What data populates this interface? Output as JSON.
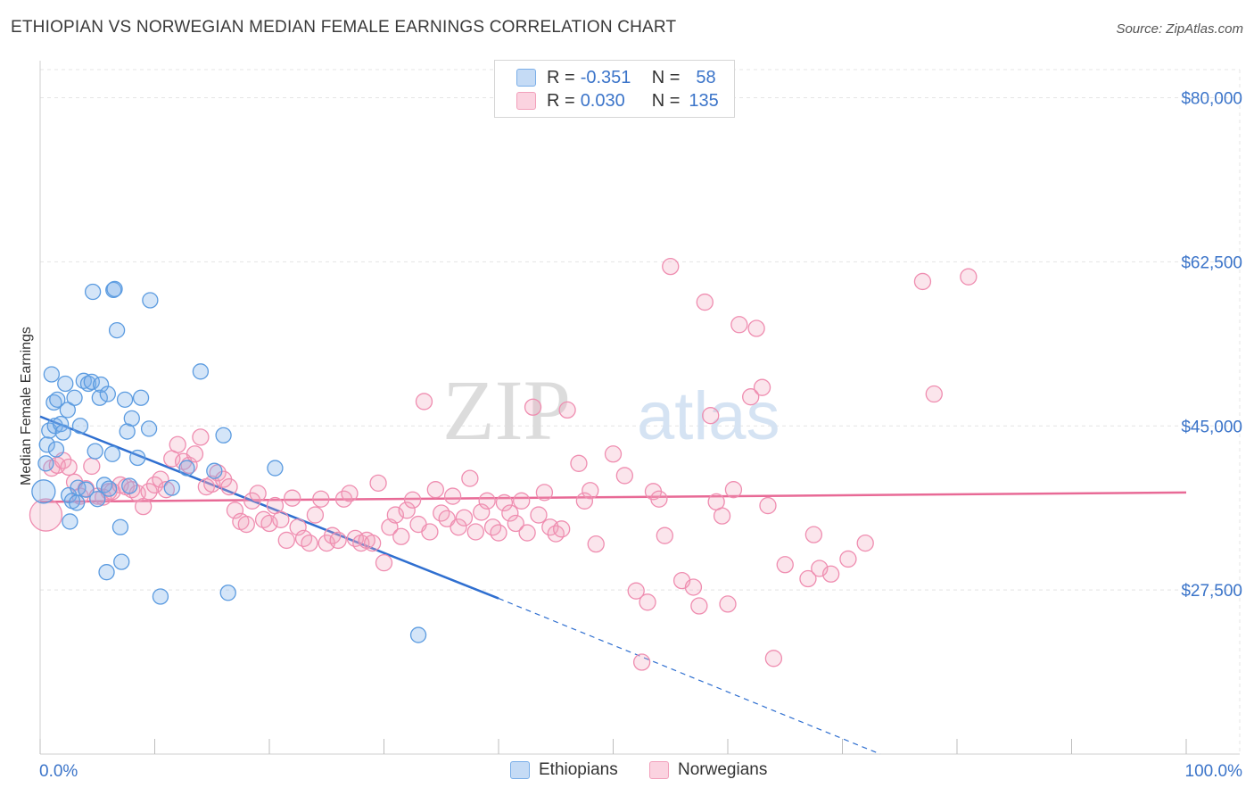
{
  "title": "ETHIOPIAN VS NORWEGIAN MEDIAN FEMALE EARNINGS CORRELATION CHART",
  "source": "Source: ZipAtlas.com",
  "watermark": {
    "zip": "ZIP",
    "atlas": "atlas"
  },
  "legend": {
    "r_label": "R =",
    "n_label": "N =",
    "rows": [
      {
        "r": "-0.351",
        "n": "58",
        "color": "#7aaee8"
      },
      {
        "r": "0.030",
        "n": "135",
        "color": "#f2a0bb"
      }
    ]
  },
  "bottom_legend": [
    {
      "label": "Ethiopians",
      "color": "#7aaee8"
    },
    {
      "label": "Norwegians",
      "color": "#f2a0bb"
    }
  ],
  "chart_data": {
    "type": "scatter",
    "title": "ETHIOPIAN VS NORWEGIAN MEDIAN FEMALE EARNINGS CORRELATION CHART",
    "xlabel": "",
    "ylabel": "Median Female Earnings",
    "xlim": [
      0,
      100
    ],
    "ylim": [
      10000,
      83000
    ],
    "x_tick_labels": [
      "0.0%",
      "100.0%"
    ],
    "y_ticks": [
      27500,
      45000,
      62500,
      80000
    ],
    "y_tick_labels": [
      "$27,500",
      "$45,000",
      "$62,500",
      "$80,000"
    ],
    "grid": true,
    "legend_position": "top-center",
    "colors": {
      "ethiopians": "#5b9be0",
      "norwegians": "#ef8db0",
      "eth_line": "#2f6fd0",
      "nor_line": "#e86a96",
      "axis_label": "#3b74c9"
    },
    "series": [
      {
        "name": "Ethiopians",
        "r": -0.351,
        "n": 58,
        "trend": {
          "x0": 0,
          "y0": 46000,
          "x1": 40,
          "y1": 26600,
          "x_end_dashed": 73.3,
          "y_end_dashed": 10000
        },
        "points": [
          [
            0.3,
            38000
          ],
          [
            0.5,
            41000
          ],
          [
            0.6,
            43000
          ],
          [
            0.8,
            44500
          ],
          [
            1,
            50500
          ],
          [
            1.2,
            47500
          ],
          [
            1.3,
            45000
          ],
          [
            1.4,
            42500
          ],
          [
            1.5,
            47800
          ],
          [
            1.8,
            45200
          ],
          [
            2,
            44300
          ],
          [
            2.2,
            49500
          ],
          [
            2.4,
            46700
          ],
          [
            2.5,
            37600
          ],
          [
            2.6,
            34800
          ],
          [
            2.8,
            37000
          ],
          [
            3,
            48000
          ],
          [
            3.2,
            36800
          ],
          [
            3.3,
            38400
          ],
          [
            3.5,
            45000
          ],
          [
            3.8,
            49800
          ],
          [
            4,
            38200
          ],
          [
            4.2,
            49500
          ],
          [
            4.5,
            49700
          ],
          [
            4.6,
            59300
          ],
          [
            4.8,
            42300
          ],
          [
            5,
            37200
          ],
          [
            5.2,
            48000
          ],
          [
            5.3,
            49400
          ],
          [
            5.6,
            38700
          ],
          [
            5.8,
            29400
          ],
          [
            5.9,
            48400
          ],
          [
            6,
            38300
          ],
          [
            6.3,
            42000
          ],
          [
            6.4,
            59500
          ],
          [
            6.5,
            59600
          ],
          [
            6.7,
            55200
          ],
          [
            7,
            34200
          ],
          [
            7.1,
            30500
          ],
          [
            7.4,
            47800
          ],
          [
            7.6,
            44400
          ],
          [
            7.8,
            38600
          ],
          [
            8,
            45800
          ],
          [
            8.5,
            41600
          ],
          [
            8.8,
            48000
          ],
          [
            9.5,
            44700
          ],
          [
            9.6,
            58400
          ],
          [
            10.5,
            26800
          ],
          [
            11.5,
            38400
          ],
          [
            12.8,
            40500
          ],
          [
            14,
            50800
          ],
          [
            15.2,
            40200
          ],
          [
            16,
            44000
          ],
          [
            16.4,
            27200
          ],
          [
            20.5,
            40500
          ],
          [
            33,
            22700
          ]
        ]
      },
      {
        "name": "Norwegians",
        "r": 0.03,
        "n": 135,
        "trend": {
          "x0": 0,
          "y0": 36900,
          "x1": 100,
          "y1": 37900
        },
        "points": [
          [
            0.5,
            35500
          ],
          [
            1,
            40500
          ],
          [
            1.5,
            40800
          ],
          [
            2,
            41300
          ],
          [
            2.5,
            40600
          ],
          [
            3,
            39000
          ],
          [
            3.5,
            37500
          ],
          [
            4,
            38300
          ],
          [
            4.5,
            40700
          ],
          [
            5,
            37500
          ],
          [
            5.5,
            37400
          ],
          [
            6,
            38000
          ],
          [
            6.3,
            38000
          ],
          [
            7,
            38700
          ],
          [
            7.5,
            38500
          ],
          [
            8,
            38200
          ],
          [
            8.5,
            37800
          ],
          [
            9,
            36400
          ],
          [
            9.5,
            38000
          ],
          [
            10,
            38700
          ],
          [
            10.5,
            39300
          ],
          [
            11,
            38200
          ],
          [
            11.5,
            41500
          ],
          [
            12,
            43000
          ],
          [
            12.5,
            41200
          ],
          [
            13,
            40800
          ],
          [
            13.5,
            42000
          ],
          [
            14,
            43800
          ],
          [
            14.5,
            38500
          ],
          [
            15,
            38800
          ],
          [
            15.5,
            40000
          ],
          [
            16,
            39300
          ],
          [
            16.5,
            38500
          ],
          [
            17,
            36000
          ],
          [
            17.5,
            34800
          ],
          [
            18,
            34500
          ],
          [
            18.5,
            37000
          ],
          [
            19,
            37800
          ],
          [
            19.5,
            35000
          ],
          [
            20,
            34600
          ],
          [
            20.5,
            36500
          ],
          [
            21,
            35000
          ],
          [
            21.5,
            32800
          ],
          [
            22,
            37300
          ],
          [
            22.5,
            34200
          ],
          [
            23,
            33000
          ],
          [
            23.5,
            32500
          ],
          [
            24,
            35500
          ],
          [
            24.5,
            37200
          ],
          [
            25,
            32500
          ],
          [
            25.5,
            33300
          ],
          [
            26,
            32800
          ],
          [
            26.5,
            37200
          ],
          [
            27,
            37800
          ],
          [
            27.5,
            33000
          ],
          [
            28,
            32500
          ],
          [
            28.5,
            32800
          ],
          [
            29,
            32500
          ],
          [
            29.5,
            38900
          ],
          [
            30,
            30400
          ],
          [
            30.5,
            34200
          ],
          [
            31,
            35500
          ],
          [
            31.5,
            33200
          ],
          [
            32,
            36000
          ],
          [
            32.5,
            37100
          ],
          [
            33,
            34500
          ],
          [
            33.5,
            47600
          ],
          [
            34,
            33700
          ],
          [
            34.5,
            38200
          ],
          [
            35,
            35700
          ],
          [
            35.5,
            35100
          ],
          [
            36,
            37500
          ],
          [
            36.5,
            34200
          ],
          [
            37,
            35200
          ],
          [
            37.5,
            39400
          ],
          [
            38,
            33700
          ],
          [
            38.5,
            35800
          ],
          [
            39,
            37000
          ],
          [
            39.5,
            34200
          ],
          [
            40,
            33600
          ],
          [
            40.5,
            36800
          ],
          [
            41,
            35700
          ],
          [
            41.5,
            34600
          ],
          [
            42,
            37000
          ],
          [
            42.5,
            33600
          ],
          [
            43,
            47000
          ],
          [
            43.5,
            35500
          ],
          [
            44,
            37900
          ],
          [
            44.5,
            34200
          ],
          [
            45,
            33500
          ],
          [
            45.5,
            34000
          ],
          [
            46,
            46700
          ],
          [
            47,
            41000
          ],
          [
            47.5,
            37000
          ],
          [
            48,
            38100
          ],
          [
            48.5,
            32400
          ],
          [
            50,
            42000
          ],
          [
            51,
            39700
          ],
          [
            52,
            27400
          ],
          [
            52.5,
            19800
          ],
          [
            53,
            26200
          ],
          [
            53.5,
            38000
          ],
          [
            54,
            37200
          ],
          [
            54.5,
            33300
          ],
          [
            55,
            62000
          ],
          [
            56,
            28500
          ],
          [
            57,
            27800
          ],
          [
            57.5,
            25800
          ],
          [
            58,
            58200
          ],
          [
            58.5,
            46100
          ],
          [
            59,
            36900
          ],
          [
            59.5,
            35400
          ],
          [
            60,
            26000
          ],
          [
            60.5,
            38200
          ],
          [
            61,
            55800
          ],
          [
            62,
            48100
          ],
          [
            62.5,
            55400
          ],
          [
            63,
            49100
          ],
          [
            63.5,
            36500
          ],
          [
            64,
            20200
          ],
          [
            65,
            30200
          ],
          [
            67,
            28700
          ],
          [
            67.5,
            33400
          ],
          [
            68,
            29800
          ],
          [
            69,
            29200
          ],
          [
            70.5,
            30800
          ],
          [
            72,
            32500
          ],
          [
            77,
            60400
          ],
          [
            78,
            48400
          ],
          [
            81,
            60900
          ]
        ]
      }
    ]
  }
}
